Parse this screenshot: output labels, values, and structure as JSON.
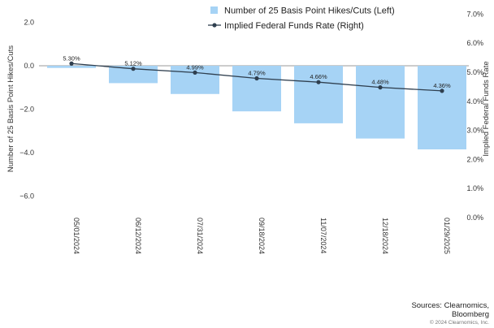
{
  "chart_data": {
    "type": "bar+line",
    "categories": [
      "05/01/2024",
      "06/12/2024",
      "07/31/2024",
      "09/18/2024",
      "11/07/2024",
      "12/18/2024",
      "01/29/2025"
    ],
    "series": [
      {
        "name": "Number of 25 Basis Point Hikes/Cuts (Left)",
        "kind": "bar",
        "axis": "left",
        "color": "#a6d3f5",
        "values": [
          -0.1,
          -0.8,
          -1.3,
          -2.1,
          -2.65,
          -3.35,
          -3.85
        ]
      },
      {
        "name": "Implied Federal Funds Rate (Right)",
        "kind": "line",
        "axis": "right",
        "color": "#2f3f4f",
        "values": [
          5.3,
          5.12,
          4.99,
          4.79,
          4.66,
          4.48,
          4.36
        ],
        "labels": [
          "5.30%",
          "5.12%",
          "4.99%",
          "4.79%",
          "4.66%",
          "4.48%",
          "4.36%"
        ]
      }
    ],
    "left_axis": {
      "label": "Number of 25 Basis Point Hikes/Cuts",
      "ylim": [
        -7,
        2.5
      ],
      "ticks": [
        2.0,
        0.0,
        -2.0,
        -4.0,
        -6.0
      ],
      "tick_labels": [
        "2.0",
        "0.0",
        "−2.0",
        "−4.0",
        "−6.0"
      ]
    },
    "right_axis": {
      "label": "Implied Federal Funds Rate",
      "ylim": [
        0,
        7
      ],
      "ticks": [
        7,
        6,
        5,
        4,
        3,
        2,
        1,
        0
      ],
      "tick_labels": [
        "7.0%",
        "6.0%",
        "5.0%",
        "4.0%",
        "3.0%",
        "2.0%",
        "1.0%",
        "0.0%"
      ]
    },
    "grid": false,
    "legend_position": "top-center"
  },
  "footer": {
    "source_line1": "Sources: Clearnomics,",
    "source_line2": "Bloomberg",
    "copyright": "© 2024 Clearnomics, Inc."
  }
}
